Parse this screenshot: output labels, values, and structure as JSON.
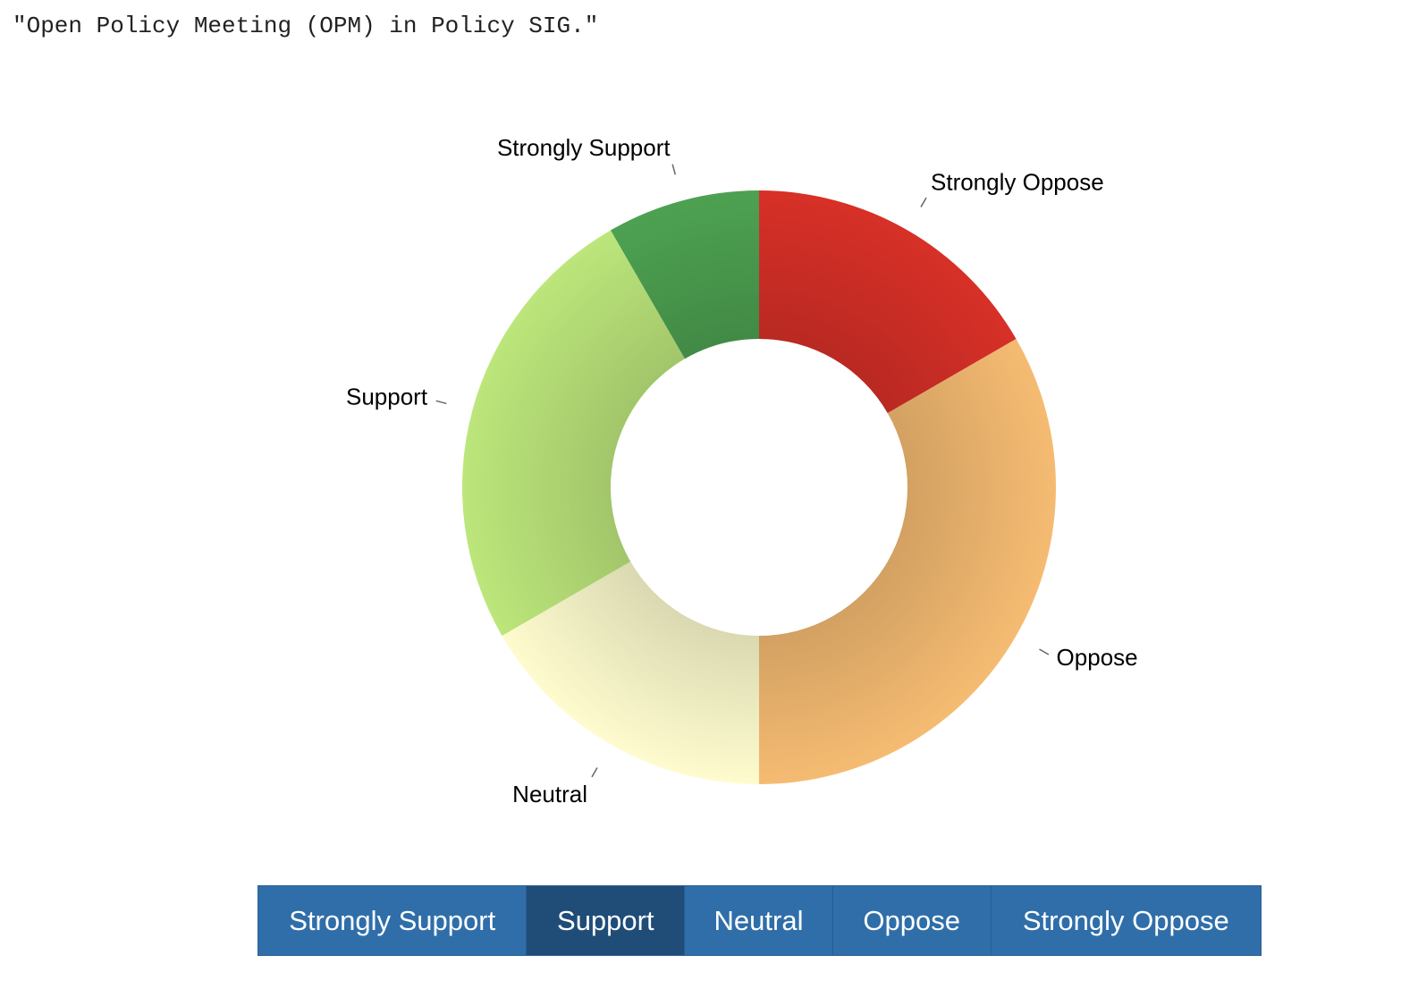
{
  "question": "\"Open Policy Meeting (OPM) in Policy SIG.\"",
  "chart_data": {
    "type": "pie",
    "categories": [
      "Strongly Oppose",
      "Oppose",
      "Neutral",
      "Support",
      "Strongly Support"
    ],
    "values": [
      2,
      4,
      2,
      3,
      1
    ],
    "colors": [
      "#d73027",
      "#f5bb72",
      "#fefcce",
      "#bce67b",
      "#4da151"
    ],
    "inner_radius_ratio": 0.5
  },
  "vote_buttons": [
    {
      "label": "Strongly Support",
      "selected": false
    },
    {
      "label": "Support",
      "selected": true
    },
    {
      "label": "Neutral",
      "selected": false
    },
    {
      "label": "Oppose",
      "selected": false
    },
    {
      "label": "Strongly Oppose",
      "selected": false
    }
  ],
  "colors": {
    "button_bg": "#2f6ea9",
    "button_selected_bg": "#1f4d78",
    "button_text": "#ffffff"
  }
}
